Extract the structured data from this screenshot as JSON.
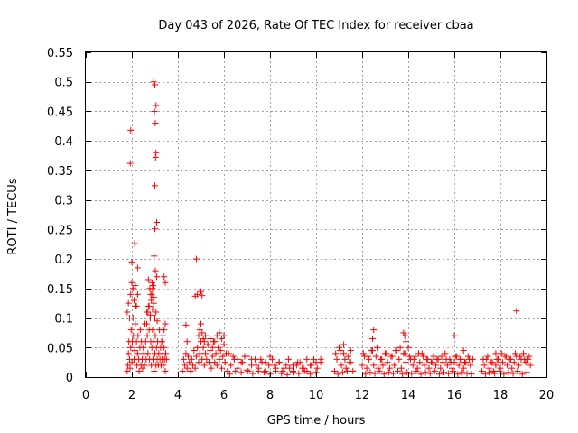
{
  "chart_data": {
    "type": "scatter",
    "title": "Day 043 of 2026, Rate Of TEC Index for receiver cbaa",
    "xlabel": "GPS time / hours",
    "ylabel": "ROTI / TECUs",
    "xlim": [
      0,
      20
    ],
    "ylim": [
      0,
      0.55
    ],
    "xticks": [
      0,
      2,
      4,
      6,
      8,
      10,
      12,
      14,
      16,
      18,
      20
    ],
    "yticks": [
      0,
      0.05,
      0.1,
      0.15,
      0.2,
      0.25,
      0.3,
      0.35,
      0.4,
      0.45,
      0.5,
      0.55
    ],
    "ytick_labels": [
      "0",
      "0.05",
      "0.1",
      "0.15",
      "0.2",
      "0.25",
      "0.3",
      "0.35",
      "0.4",
      "0.45",
      "0.5",
      "0.55"
    ],
    "grid": true,
    "marker": "+",
    "series": [
      {
        "name": "ROTI",
        "color": "#ff0000",
        "x": [
          1.8,
          1.82,
          1.85,
          1.87,
          1.9,
          1.92,
          1.95,
          1.97,
          2.0,
          2.02,
          2.05,
          2.07,
          2.1,
          2.12,
          2.15,
          2.17,
          2.2,
          2.22,
          2.25,
          2.27,
          2.3,
          2.32,
          2.35,
          2.37,
          2.4,
          2.42,
          2.45,
          2.47,
          2.5,
          2.52,
          2.55,
          2.57,
          2.6,
          2.62,
          2.65,
          2.67,
          2.7,
          2.72,
          2.75,
          2.77,
          2.8,
          2.82,
          2.85,
          2.87,
          2.9,
          2.92,
          2.95,
          2.97,
          3.0,
          3.02,
          3.05,
          3.07,
          3.1,
          3.12,
          3.15,
          3.17,
          3.2,
          3.22,
          3.25,
          3.27,
          3.3,
          3.32,
          3.35,
          3.37,
          3.4,
          3.42,
          3.45,
          3.47,
          3.5,
          1.95,
          2.0,
          2.05,
          2.1,
          2.15,
          2.2,
          2.25,
          1.9,
          1.85,
          1.8,
          2.65,
          2.7,
          2.75,
          2.8,
          2.85,
          2.9,
          2.95,
          3.0,
          3.05,
          3.1,
          2.72,
          2.78,
          2.82,
          2.88,
          3.35,
          3.4,
          3.45,
          3.3,
          1.95,
          1.93,
          2.0,
          2.12,
          2.25,
          2.95,
          3.0,
          3.05,
          3.02,
          2.98,
          3.05,
          3.03,
          3.0,
          3.08,
          3.0,
          2.97,
          3.02,
          3.08,
          3.4,
          3.45,
          2.9,
          2.92,
          2.87,
          2.95,
          4.8,
          4.85,
          5.0,
          5.05,
          4.75,
          4.35,
          4.4,
          4.2,
          4.25,
          4.3,
          4.35,
          4.4,
          4.45,
          4.5,
          4.55,
          4.6,
          4.65,
          4.7,
          4.75,
          4.8,
          4.85,
          4.9,
          4.95,
          5.0,
          5.05,
          5.1,
          5.15,
          5.2,
          5.25,
          5.3,
          5.35,
          5.4,
          5.45,
          5.5,
          5.55,
          5.6,
          5.65,
          5.7,
          5.75,
          5.8,
          5.85,
          5.9,
          5.95,
          6.0,
          6.05,
          6.1,
          4.9,
          4.95,
          5.0,
          5.05,
          5.1,
          5.15,
          5.2,
          5.3,
          5.4,
          5.5,
          5.6,
          5.7,
          5.8,
          5.9,
          6.0,
          6.15,
          6.3,
          6.45,
          6.6,
          6.75,
          6.9,
          7.05,
          7.2,
          7.35,
          7.5,
          7.65,
          7.8,
          7.95,
          8.1,
          8.25,
          8.4,
          8.55,
          8.7,
          8.85,
          9.0,
          9.15,
          9.3,
          9.45,
          9.6,
          9.75,
          9.9,
          10.05,
          10.2,
          6.2,
          6.4,
          6.6,
          6.8,
          7.0,
          7.2,
          7.4,
          7.6,
          7.8,
          8.0,
          8.2,
          8.4,
          8.6,
          8.8,
          9.0,
          9.2,
          9.4,
          9.6,
          9.8,
          10.0,
          10.2,
          6.25,
          6.5,
          6.75,
          7.0,
          7.25,
          7.5,
          7.75,
          8.0,
          8.25,
          8.5,
          8.75,
          9.0,
          9.25,
          9.5,
          9.75,
          10.0,
          10.8,
          10.9,
          11.0,
          11.1,
          11.2,
          11.3,
          11.4,
          11.5,
          11.6,
          12.0,
          12.1,
          12.2,
          12.3,
          12.4,
          12.5,
          12.6,
          12.7,
          12.8,
          12.9,
          13.0,
          13.1,
          13.2,
          13.3,
          13.4,
          13.5,
          13.6,
          13.7,
          13.8,
          13.9,
          14.0,
          14.1,
          14.2,
          14.3,
          14.4,
          14.5,
          14.6,
          14.7,
          14.8,
          14.9,
          15.0,
          15.1,
          15.2,
          15.3,
          15.4,
          15.5,
          15.6,
          15.7,
          15.8,
          15.9,
          16.0,
          16.1,
          16.2,
          16.3,
          16.4,
          16.5,
          16.6,
          16.7,
          16.8,
          10.85,
          11.05,
          11.25,
          11.45,
          12.05,
          12.25,
          12.45,
          12.65,
          12.85,
          13.05,
          13.25,
          13.45,
          13.65,
          13.85,
          14.05,
          14.25,
          14.45,
          14.65,
          14.85,
          15.05,
          15.25,
          15.45,
          15.65,
          15.85,
          16.05,
          16.25,
          16.45,
          16.65,
          10.95,
          11.15,
          11.35,
          12.15,
          12.35,
          12.55,
          12.75,
          12.95,
          13.15,
          13.35,
          13.55,
          13.75,
          13.95,
          14.15,
          14.35,
          14.55,
          14.75,
          14.95,
          15.15,
          15.35,
          15.55,
          15.75,
          15.95,
          16.15,
          16.35,
          16.55,
          16.75,
          12.5,
          12.45,
          13.8,
          13.85,
          13.9,
          16.0,
          16.4,
          11.2,
          11.5,
          17.2,
          17.3,
          17.4,
          17.5,
          17.6,
          17.7,
          17.8,
          17.9,
          18.0,
          18.1,
          18.2,
          18.3,
          18.4,
          18.5,
          18.6,
          18.7,
          18.8,
          18.9,
          19.0,
          19.1,
          19.2,
          19.3,
          17.25,
          17.45,
          17.65,
          17.85,
          18.05,
          18.25,
          18.45,
          18.65,
          18.85,
          19.05,
          19.25,
          17.35,
          17.55,
          17.75,
          17.95,
          18.15,
          18.35,
          18.55,
          18.75,
          18.95,
          19.15,
          18.7,
          17.8
        ],
        "y": [
          0.01,
          0.02,
          0.04,
          0.06,
          0.03,
          0.015,
          0.05,
          0.08,
          0.025,
          0.06,
          0.1,
          0.07,
          0.03,
          0.045,
          0.09,
          0.12,
          0.06,
          0.02,
          0.04,
          0.07,
          0.03,
          0.01,
          0.05,
          0.08,
          0.02,
          0.06,
          0.03,
          0.015,
          0.05,
          0.04,
          0.02,
          0.09,
          0.06,
          0.03,
          0.11,
          0.07,
          0.04,
          0.12,
          0.08,
          0.03,
          0.1,
          0.06,
          0.02,
          0.05,
          0.08,
          0.03,
          0.06,
          0.01,
          0.04,
          0.07,
          0.02,
          0.05,
          0.03,
          0.06,
          0.02,
          0.04,
          0.08,
          0.03,
          0.05,
          0.02,
          0.06,
          0.03,
          0.04,
          0.02,
          0.05,
          0.03,
          0.01,
          0.04,
          0.03,
          0.14,
          0.16,
          0.15,
          0.13,
          0.155,
          0.12,
          0.14,
          0.1,
          0.125,
          0.11,
          0.09,
          0.11,
          0.12,
          0.105,
          0.13,
          0.115,
          0.125,
          0.1,
          0.11,
          0.095,
          0.165,
          0.15,
          0.14,
          0.16,
          0.07,
          0.08,
          0.09,
          0.06,
          0.418,
          0.362,
          0.195,
          0.226,
          0.185,
          0.5,
          0.495,
          0.46,
          0.43,
          0.45,
          0.38,
          0.372,
          0.324,
          0.262,
          0.251,
          0.205,
          0.18,
          0.17,
          0.17,
          0.16,
          0.15,
          0.155,
          0.14,
          0.135,
          0.2,
          0.14,
          0.145,
          0.138,
          0.137,
          0.088,
          0.06,
          0.01,
          0.03,
          0.02,
          0.04,
          0.015,
          0.035,
          0.025,
          0.01,
          0.03,
          0.02,
          0.045,
          0.015,
          0.035,
          0.05,
          0.025,
          0.04,
          0.06,
          0.03,
          0.05,
          0.02,
          0.04,
          0.03,
          0.055,
          0.025,
          0.045,
          0.015,
          0.035,
          0.06,
          0.025,
          0.04,
          0.02,
          0.05,
          0.03,
          0.045,
          0.015,
          0.035,
          0.055,
          0.025,
          0.04,
          0.07,
          0.08,
          0.09,
          0.075,
          0.065,
          0.06,
          0.07,
          0.055,
          0.065,
          0.05,
          0.06,
          0.07,
          0.075,
          0.065,
          0.07,
          0.01,
          0.02,
          0.03,
          0.015,
          0.025,
          0.035,
          0.01,
          0.02,
          0.03,
          0.015,
          0.025,
          0.01,
          0.02,
          0.03,
          0.015,
          0.025,
          0.01,
          0.02,
          0.015,
          0.01,
          0.02,
          0.025,
          0.015,
          0.01,
          0.02,
          0.03,
          0.015,
          0.025,
          0.04,
          0.035,
          0.03,
          0.025,
          0.035,
          0.03,
          0.02,
          0.03,
          0.025,
          0.035,
          0.02,
          0.025,
          0.015,
          0.03,
          0.02,
          0.025,
          0.015,
          0.03,
          0.02,
          0.025,
          0.03,
          0.005,
          0.01,
          0.008,
          0.012,
          0.006,
          0.01,
          0.008,
          0.005,
          0.01,
          0.006,
          0.004,
          0.008,
          0.006,
          0.01,
          0.005,
          0.008,
          0.01,
          0.03,
          0.05,
          0.02,
          0.04,
          0.015,
          0.035,
          0.025,
          0.01,
          0.02,
          0.035,
          0.015,
          0.03,
          0.045,
          0.02,
          0.035,
          0.015,
          0.03,
          0.02,
          0.04,
          0.025,
          0.015,
          0.035,
          0.02,
          0.045,
          0.03,
          0.015,
          0.04,
          0.025,
          0.05,
          0.03,
          0.02,
          0.035,
          0.015,
          0.025,
          0.04,
          0.02,
          0.03,
          0.015,
          0.025,
          0.035,
          0.02,
          0.03,
          0.015,
          0.025,
          0.04,
          0.02,
          0.03,
          0.015,
          0.025,
          0.035,
          0.02,
          0.03,
          0.015,
          0.025,
          0.035,
          0.02,
          0.03,
          0.04,
          0.045,
          0.03,
          0.025,
          0.04,
          0.035,
          0.045,
          0.05,
          0.03,
          0.04,
          0.035,
          0.045,
          0.05,
          0.04,
          0.035,
          0.03,
          0.04,
          0.035,
          0.03,
          0.025,
          0.03,
          0.035,
          0.03,
          0.025,
          0.035,
          0.03,
          0.025,
          0.03,
          0.005,
          0.008,
          0.01,
          0.005,
          0.008,
          0.006,
          0.01,
          0.005,
          0.008,
          0.006,
          0.01,
          0.005,
          0.008,
          0.006,
          0.01,
          0.005,
          0.008,
          0.006,
          0.01,
          0.005,
          0.008,
          0.006,
          0.01,
          0.005,
          0.008,
          0.006,
          0.005,
          0.08,
          0.065,
          0.075,
          0.07,
          0.06,
          0.07,
          0.045,
          0.055,
          0.045,
          0.01,
          0.02,
          0.03,
          0.015,
          0.025,
          0.01,
          0.02,
          0.03,
          0.015,
          0.025,
          0.035,
          0.02,
          0.03,
          0.015,
          0.025,
          0.035,
          0.02,
          0.03,
          0.04,
          0.025,
          0.03,
          0.02,
          0.03,
          0.035,
          0.025,
          0.03,
          0.04,
          0.035,
          0.03,
          0.04,
          0.035,
          0.03,
          0.035,
          0.005,
          0.008,
          0.006,
          0.01,
          0.005,
          0.008,
          0.006,
          0.01,
          0.005,
          0.008,
          0.112,
          0.04
        ]
      }
    ]
  }
}
